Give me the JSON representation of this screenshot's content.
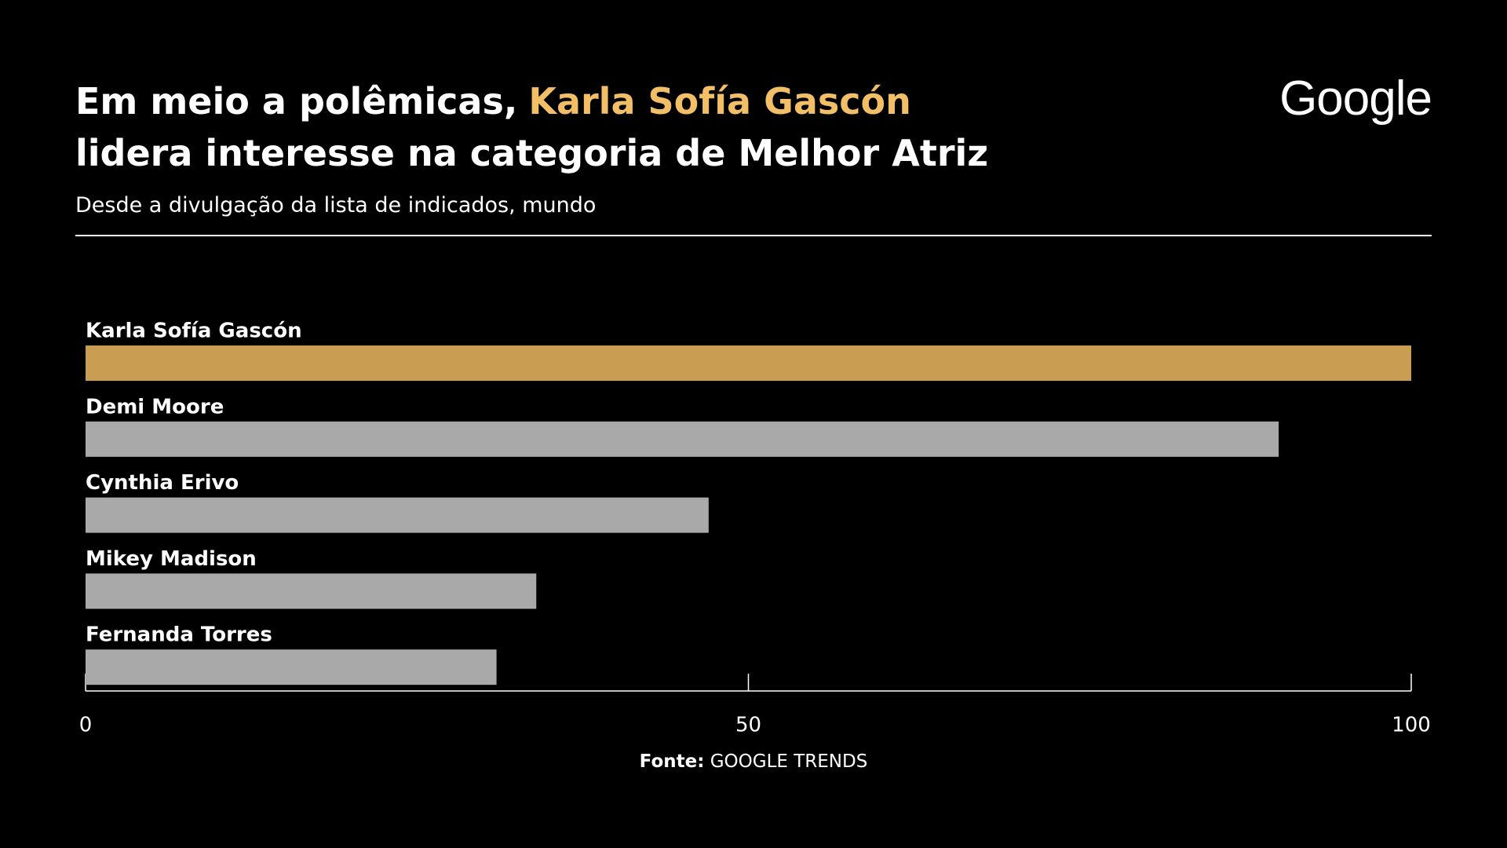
{
  "chart_data": {
    "type": "hbar",
    "title_parts": [
      "Em meio a polêmicas,",
      "Karla Sofía Gascón",
      "lidera interesse na categoria de Melhor Atriz"
    ],
    "subtitle": "Desde a divulgação da lista de indicados, mundo",
    "logo": "Google",
    "categories": [
      "Karla Sofía Gascón",
      "Demi Moore",
      "Cynthia Erivo",
      "Mikey Madison",
      "Fernanda Torres"
    ],
    "values": [
      100,
      90,
      47,
      34,
      31
    ],
    "colors": [
      "#c99d52",
      "#a9a9a9",
      "#a9a9a9",
      "#a9a9a9",
      "#a9a9a9"
    ],
    "xlim": [
      0,
      100
    ],
    "xticks": [
      0,
      50,
      100
    ],
    "source_label": "Fonte:",
    "source": "GOOGLE TRENDS"
  }
}
